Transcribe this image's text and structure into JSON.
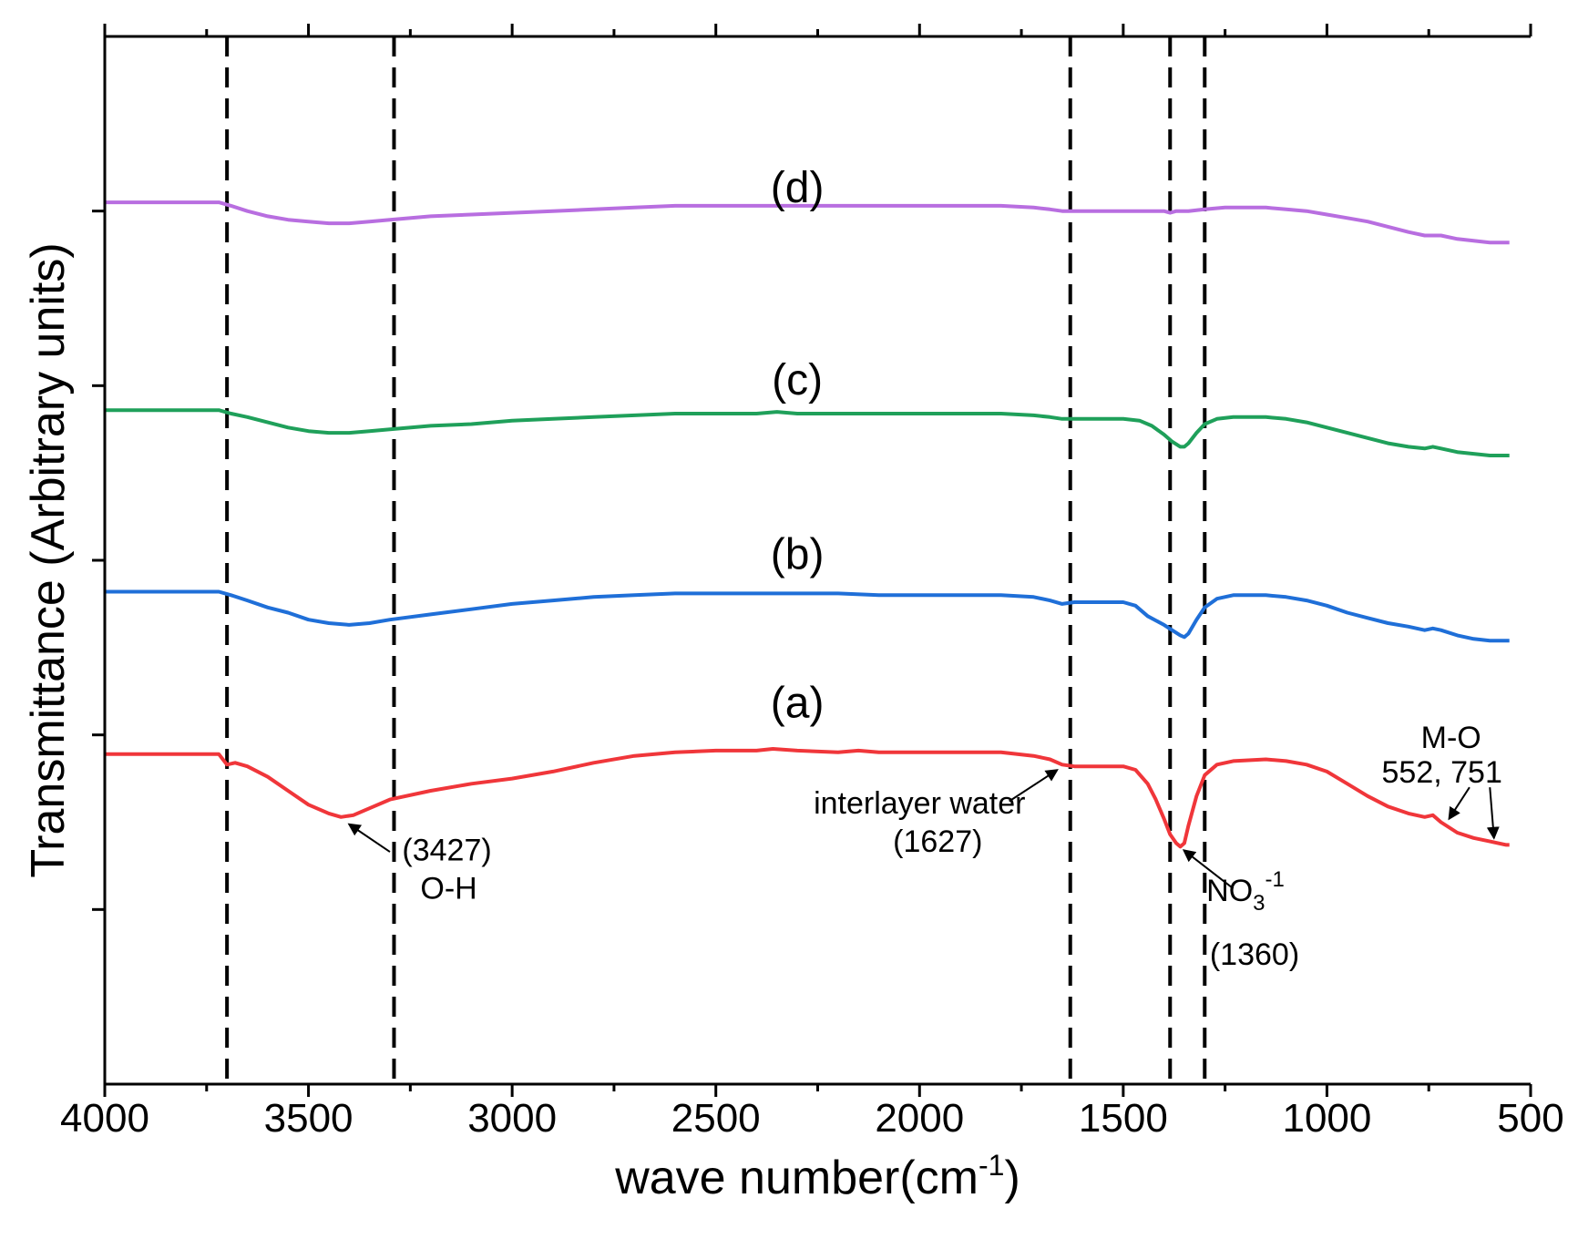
{
  "chart_data": {
    "type": "line",
    "xlabel": "wave number(cm",
    "xlabel_sup": "-1",
    "xlabel_close": ")",
    "ylabel": "Transmittance (Arbitrary units)",
    "xlim": [
      4000,
      500
    ],
    "x_ticks": [
      4000,
      3500,
      3000,
      2500,
      2000,
      1500,
      1000,
      500
    ],
    "x_tick_labels": [
      "4000",
      "3500",
      "3000",
      "2500",
      "2000",
      "1500",
      "1000",
      "500"
    ],
    "ylim": [
      0,
      6
    ],
    "y_major_ticks": [
      1,
      2,
      3,
      4,
      5
    ],
    "y_ticks_labeled": false,
    "grid": false,
    "vlines": [
      3700,
      3290,
      1630,
      1385,
      1300
    ],
    "colors": {
      "a": "#f0363a",
      "b": "#1f6fd8",
      "c": "#1fa05a",
      "d": "#b86ee0",
      "axis": "#000000",
      "vline": "#000000"
    },
    "series": [
      {
        "name": "(a)",
        "key": "a",
        "label_x": 2300,
        "label_y": 2.1,
        "points": [
          [
            4000,
            1.89
          ],
          [
            3720,
            1.89
          ],
          [
            3700,
            1.83
          ],
          [
            3680,
            1.84
          ],
          [
            3650,
            1.82
          ],
          [
            3600,
            1.76
          ],
          [
            3550,
            1.68
          ],
          [
            3500,
            1.6
          ],
          [
            3450,
            1.55
          ],
          [
            3420,
            1.53
          ],
          [
            3390,
            1.54
          ],
          [
            3350,
            1.58
          ],
          [
            3300,
            1.63
          ],
          [
            3200,
            1.68
          ],
          [
            3100,
            1.72
          ],
          [
            3000,
            1.75
          ],
          [
            2900,
            1.79
          ],
          [
            2800,
            1.84
          ],
          [
            2700,
            1.88
          ],
          [
            2600,
            1.9
          ],
          [
            2500,
            1.91
          ],
          [
            2400,
            1.91
          ],
          [
            2360,
            1.92
          ],
          [
            2300,
            1.91
          ],
          [
            2200,
            1.9
          ],
          [
            2150,
            1.91
          ],
          [
            2100,
            1.9
          ],
          [
            2000,
            1.9
          ],
          [
            1900,
            1.9
          ],
          [
            1800,
            1.9
          ],
          [
            1720,
            1.88
          ],
          [
            1680,
            1.86
          ],
          [
            1650,
            1.83
          ],
          [
            1620,
            1.82
          ],
          [
            1550,
            1.82
          ],
          [
            1500,
            1.82
          ],
          [
            1470,
            1.8
          ],
          [
            1440,
            1.72
          ],
          [
            1420,
            1.63
          ],
          [
            1400,
            1.52
          ],
          [
            1385,
            1.43
          ],
          [
            1370,
            1.38
          ],
          [
            1360,
            1.36
          ],
          [
            1350,
            1.38
          ],
          [
            1340,
            1.48
          ],
          [
            1320,
            1.65
          ],
          [
            1300,
            1.77
          ],
          [
            1270,
            1.83
          ],
          [
            1230,
            1.85
          ],
          [
            1150,
            1.86
          ],
          [
            1100,
            1.85
          ],
          [
            1050,
            1.83
          ],
          [
            1000,
            1.79
          ],
          [
            950,
            1.72
          ],
          [
            900,
            1.65
          ],
          [
            850,
            1.59
          ],
          [
            800,
            1.55
          ],
          [
            760,
            1.53
          ],
          [
            740,
            1.54
          ],
          [
            720,
            1.5
          ],
          [
            680,
            1.44
          ],
          [
            640,
            1.41
          ],
          [
            600,
            1.39
          ],
          [
            560,
            1.37
          ],
          [
            552,
            1.37
          ]
        ]
      },
      {
        "name": "(b)",
        "key": "b",
        "label_x": 2300,
        "label_y": 2.95,
        "points": [
          [
            4000,
            2.82
          ],
          [
            3720,
            2.82
          ],
          [
            3690,
            2.8
          ],
          [
            3650,
            2.77
          ],
          [
            3600,
            2.73
          ],
          [
            3550,
            2.7
          ],
          [
            3500,
            2.66
          ],
          [
            3450,
            2.64
          ],
          [
            3400,
            2.63
          ],
          [
            3350,
            2.64
          ],
          [
            3300,
            2.66
          ],
          [
            3200,
            2.69
          ],
          [
            3100,
            2.72
          ],
          [
            3000,
            2.75
          ],
          [
            2900,
            2.77
          ],
          [
            2800,
            2.79
          ],
          [
            2700,
            2.8
          ],
          [
            2600,
            2.81
          ],
          [
            2500,
            2.81
          ],
          [
            2400,
            2.81
          ],
          [
            2300,
            2.81
          ],
          [
            2200,
            2.81
          ],
          [
            2100,
            2.8
          ],
          [
            2000,
            2.8
          ],
          [
            1900,
            2.8
          ],
          [
            1800,
            2.8
          ],
          [
            1720,
            2.79
          ],
          [
            1680,
            2.77
          ],
          [
            1650,
            2.75
          ],
          [
            1620,
            2.76
          ],
          [
            1580,
            2.76
          ],
          [
            1540,
            2.76
          ],
          [
            1500,
            2.76
          ],
          [
            1470,
            2.74
          ],
          [
            1440,
            2.68
          ],
          [
            1400,
            2.63
          ],
          [
            1380,
            2.6
          ],
          [
            1360,
            2.57
          ],
          [
            1350,
            2.56
          ],
          [
            1340,
            2.58
          ],
          [
            1320,
            2.66
          ],
          [
            1300,
            2.73
          ],
          [
            1270,
            2.78
          ],
          [
            1230,
            2.8
          ],
          [
            1150,
            2.8
          ],
          [
            1100,
            2.79
          ],
          [
            1050,
            2.77
          ],
          [
            1000,
            2.74
          ],
          [
            950,
            2.7
          ],
          [
            900,
            2.67
          ],
          [
            850,
            2.64
          ],
          [
            800,
            2.62
          ],
          [
            760,
            2.6
          ],
          [
            740,
            2.61
          ],
          [
            720,
            2.6
          ],
          [
            680,
            2.57
          ],
          [
            640,
            2.55
          ],
          [
            600,
            2.54
          ],
          [
            552,
            2.54
          ]
        ]
      },
      {
        "name": "(c)",
        "key": "c",
        "label_x": 2300,
        "label_y": 3.95,
        "points": [
          [
            4000,
            3.86
          ],
          [
            3720,
            3.86
          ],
          [
            3690,
            3.84
          ],
          [
            3650,
            3.82
          ],
          [
            3600,
            3.79
          ],
          [
            3550,
            3.76
          ],
          [
            3500,
            3.74
          ],
          [
            3450,
            3.73
          ],
          [
            3400,
            3.73
          ],
          [
            3350,
            3.74
          ],
          [
            3300,
            3.75
          ],
          [
            3200,
            3.77
          ],
          [
            3100,
            3.78
          ],
          [
            3000,
            3.8
          ],
          [
            2900,
            3.81
          ],
          [
            2800,
            3.82
          ],
          [
            2700,
            3.83
          ],
          [
            2600,
            3.84
          ],
          [
            2500,
            3.84
          ],
          [
            2400,
            3.84
          ],
          [
            2350,
            3.85
          ],
          [
            2300,
            3.84
          ],
          [
            2200,
            3.84
          ],
          [
            2100,
            3.84
          ],
          [
            2000,
            3.84
          ],
          [
            1900,
            3.84
          ],
          [
            1800,
            3.84
          ],
          [
            1720,
            3.83
          ],
          [
            1680,
            3.82
          ],
          [
            1650,
            3.81
          ],
          [
            1600,
            3.81
          ],
          [
            1550,
            3.81
          ],
          [
            1500,
            3.81
          ],
          [
            1460,
            3.8
          ],
          [
            1430,
            3.77
          ],
          [
            1400,
            3.72
          ],
          [
            1380,
            3.68
          ],
          [
            1360,
            3.65
          ],
          [
            1350,
            3.65
          ],
          [
            1340,
            3.67
          ],
          [
            1320,
            3.73
          ],
          [
            1300,
            3.78
          ],
          [
            1270,
            3.81
          ],
          [
            1230,
            3.82
          ],
          [
            1150,
            3.82
          ],
          [
            1100,
            3.81
          ],
          [
            1050,
            3.79
          ],
          [
            1000,
            3.76
          ],
          [
            950,
            3.73
          ],
          [
            900,
            3.7
          ],
          [
            850,
            3.67
          ],
          [
            800,
            3.65
          ],
          [
            760,
            3.64
          ],
          [
            740,
            3.65
          ],
          [
            720,
            3.64
          ],
          [
            680,
            3.62
          ],
          [
            640,
            3.61
          ],
          [
            600,
            3.6
          ],
          [
            552,
            3.6
          ]
        ]
      },
      {
        "name": "(d)",
        "key": "d",
        "label_x": 2300,
        "label_y": 5.05,
        "points": [
          [
            4000,
            5.05
          ],
          [
            3720,
            5.05
          ],
          [
            3690,
            5.03
          ],
          [
            3650,
            5.0
          ],
          [
            3600,
            4.97
          ],
          [
            3550,
            4.95
          ],
          [
            3500,
            4.94
          ],
          [
            3450,
            4.93
          ],
          [
            3400,
            4.93
          ],
          [
            3350,
            4.94
          ],
          [
            3300,
            4.95
          ],
          [
            3200,
            4.97
          ],
          [
            3100,
            4.98
          ],
          [
            3000,
            4.99
          ],
          [
            2900,
            5.0
          ],
          [
            2800,
            5.01
          ],
          [
            2700,
            5.02
          ],
          [
            2600,
            5.03
          ],
          [
            2500,
            5.03
          ],
          [
            2400,
            5.03
          ],
          [
            2300,
            5.03
          ],
          [
            2200,
            5.03
          ],
          [
            2100,
            5.03
          ],
          [
            2000,
            5.03
          ],
          [
            1900,
            5.03
          ],
          [
            1800,
            5.03
          ],
          [
            1720,
            5.02
          ],
          [
            1680,
            5.01
          ],
          [
            1650,
            5.0
          ],
          [
            1600,
            5.0
          ],
          [
            1550,
            5.0
          ],
          [
            1500,
            5.0
          ],
          [
            1450,
            5.0
          ],
          [
            1400,
            5.0
          ],
          [
            1385,
            4.99
          ],
          [
            1370,
            5.0
          ],
          [
            1340,
            5.0
          ],
          [
            1300,
            5.01
          ],
          [
            1250,
            5.02
          ],
          [
            1200,
            5.02
          ],
          [
            1150,
            5.02
          ],
          [
            1100,
            5.01
          ],
          [
            1050,
            5.0
          ],
          [
            1000,
            4.98
          ],
          [
            950,
            4.96
          ],
          [
            900,
            4.94
          ],
          [
            850,
            4.91
          ],
          [
            800,
            4.88
          ],
          [
            760,
            4.86
          ],
          [
            740,
            4.86
          ],
          [
            720,
            4.86
          ],
          [
            680,
            4.84
          ],
          [
            640,
            4.83
          ],
          [
            600,
            4.82
          ],
          [
            552,
            4.82
          ]
        ]
      }
    ],
    "annotations": {
      "oh": {
        "line1": "(3427)",
        "line2": "O-H",
        "x": 3427,
        "y": 1.53,
        "text_x": 3270,
        "text_y": 1.28
      },
      "water": {
        "line1": "interlayer water",
        "line2": "(1627)",
        "x": 1640,
        "y": 1.82,
        "text_x": 2000,
        "text_y": 1.55
      },
      "no3": {
        "line1": "NO",
        "sub": "3",
        "sup": "-1",
        "line2": "(1360)",
        "x": 1360,
        "y": 1.36,
        "text_x": 1200,
        "text_y": 1.05
      },
      "mo": {
        "line1": "M-O",
        "line2": "552, 751",
        "x1": 700,
        "y1": 1.52,
        "x2": 590,
        "y2": 1.41,
        "text_x": 740,
        "text_y": 1.78
      }
    }
  }
}
